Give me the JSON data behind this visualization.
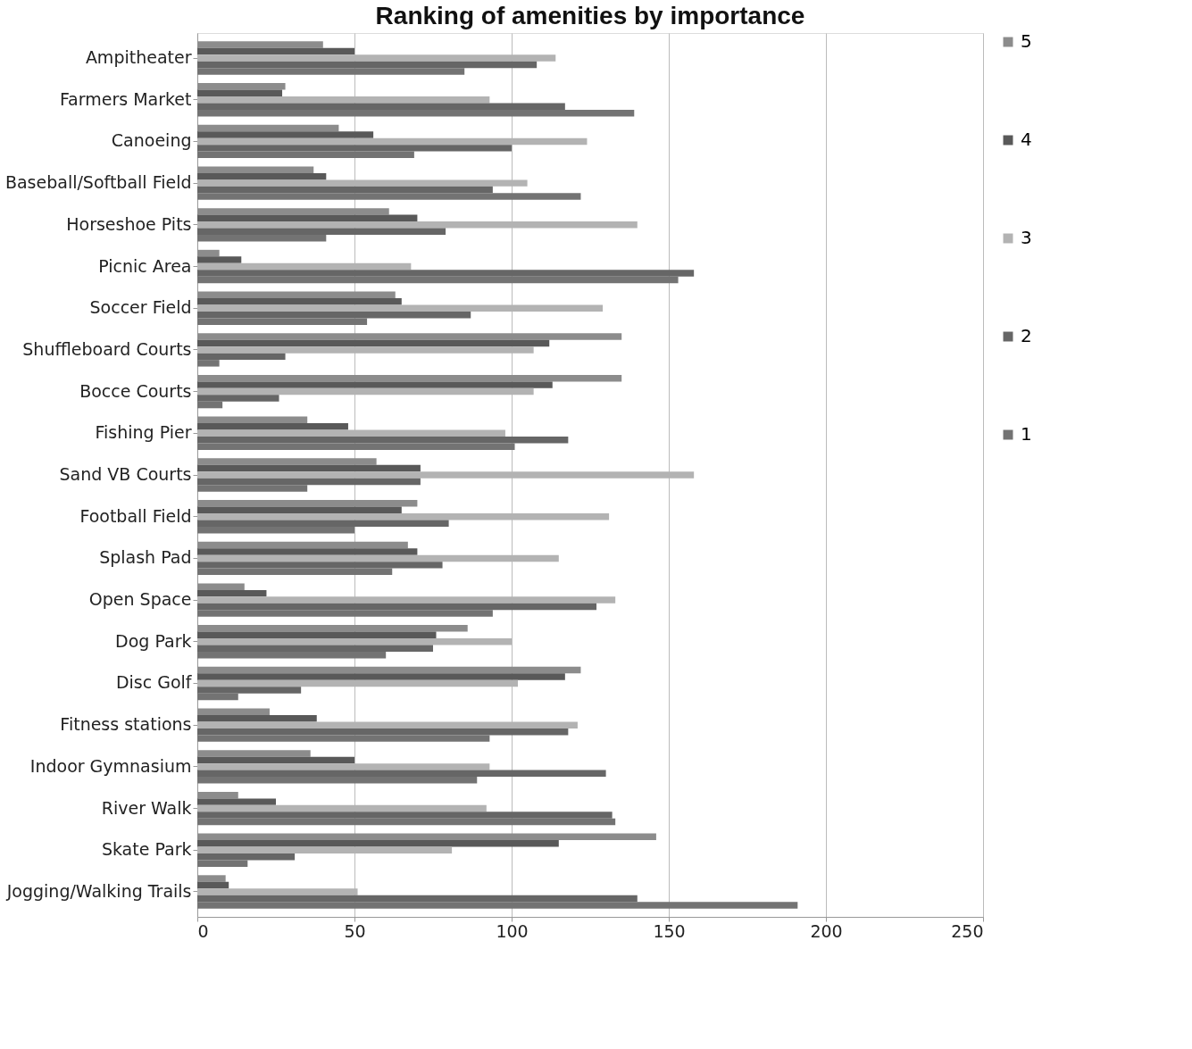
{
  "chart_data": {
    "type": "bar",
    "orientation": "horizontal",
    "title": "Ranking of amenities by importance",
    "categories": [
      "Ampitheater",
      "Farmers Market",
      "Canoeing",
      "Baseball/Softball Field",
      "Horseshoe Pits",
      "Picnic Area",
      "Soccer Field",
      "Shuffleboard Courts",
      "Bocce Courts",
      "Fishing Pier",
      "Sand VB Courts",
      "Football Field",
      "Splash Pad",
      "Open Space",
      "Dog Park",
      "Disc Golf",
      "Fitness stations",
      "Indoor Gymnasium",
      "River Walk",
      "Skate Park",
      "Jogging/Walking Trails"
    ],
    "series": [
      {
        "name": "5",
        "color": "#8c8c8c",
        "values": [
          40,
          28,
          45,
          37,
          61,
          7,
          63,
          135,
          135,
          35,
          57,
          70,
          67,
          15,
          86,
          122,
          23,
          36,
          13,
          146,
          9
        ]
      },
      {
        "name": "4",
        "color": "#595959",
        "values": [
          50,
          27,
          56,
          41,
          70,
          14,
          65,
          112,
          113,
          48,
          71,
          65,
          70,
          22,
          76,
          117,
          38,
          50,
          25,
          115,
          10
        ]
      },
      {
        "name": "3",
        "color": "#b3b3b3",
        "values": [
          114,
          93,
          124,
          105,
          140,
          68,
          129,
          107,
          107,
          98,
          158,
          131,
          115,
          133,
          100,
          102,
          121,
          93,
          92,
          81,
          51
        ]
      },
      {
        "name": "2",
        "color": "#666666",
        "values": [
          108,
          117,
          100,
          94,
          79,
          158,
          87,
          28,
          26,
          118,
          71,
          80,
          78,
          127,
          75,
          33,
          118,
          130,
          132,
          31,
          140
        ]
      },
      {
        "name": "1",
        "color": "#737373",
        "values": [
          85,
          139,
          69,
          122,
          41,
          153,
          54,
          7,
          8,
          101,
          35,
          50,
          62,
          94,
          60,
          13,
          93,
          89,
          133,
          16,
          191
        ]
      }
    ],
    "xlim": [
      0,
      250
    ],
    "xticks": [
      0,
      50,
      100,
      150,
      200,
      250
    ],
    "grid": "x",
    "legend": "right"
  }
}
